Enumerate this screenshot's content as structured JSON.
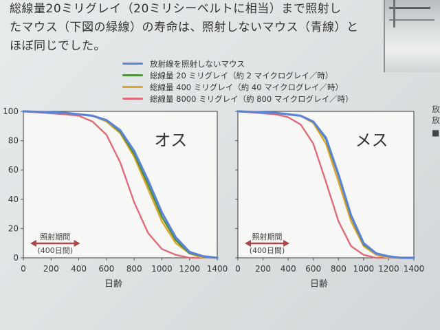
{
  "text": {
    "lines": [
      "総線量20ミリグレイ（20ミリシーベルトに相当）まで照射し",
      "たマウス（下図の緑線）の寿命は、照射しないマウス（青線）と",
      "ほぼ同じでした。"
    ]
  },
  "edge_glyphs": [
    "放",
    "放",
    "■"
  ],
  "colors": {
    "blue": "#5a82d6",
    "green": "#4c8f3a",
    "orange": "#d9a52a",
    "pink": "#e06a78",
    "arrow": "#a84848"
  },
  "chart_data": [
    {
      "type": "line",
      "title": "オス",
      "xlabel": "日齢",
      "ylabel": "",
      "xlim": [
        0,
        1400
      ],
      "ylim": [
        0,
        100
      ],
      "xticks": [
        "0",
        "200",
        "400",
        "600",
        "800",
        "1000",
        "1200",
        "1400"
      ],
      "yticks": [
        "0",
        "20",
        "40",
        "60",
        "80",
        "100"
      ],
      "annotation": {
        "label": "照射期間",
        "sublabel": "(400日間)",
        "x_range": [
          0,
          400
        ]
      },
      "series": [
        {
          "name": "放射線を照射しないマウス",
          "color": "#5a82d6",
          "x": [
            0,
            300,
            500,
            600,
            700,
            800,
            900,
            1000,
            1100,
            1200,
            1300,
            1400
          ],
          "y": [
            100,
            99,
            97,
            94,
            87,
            73,
            53,
            31,
            14,
            4,
            1,
            0
          ]
        },
        {
          "name": "総線量 20 ミリグレイ（約 2 マイクログレイ／時）",
          "color": "#4c8f3a",
          "x": [
            0,
            300,
            500,
            600,
            700,
            800,
            900,
            1000,
            1100,
            1200,
            1300,
            1400
          ],
          "y": [
            100,
            99,
            97,
            94,
            86,
            71,
            50,
            28,
            12,
            3,
            1,
            0
          ]
        },
        {
          "name": "総線量 400 ミリグレイ（約 40 マイクログレイ／時）",
          "color": "#d9a52a",
          "x": [
            0,
            300,
            500,
            600,
            700,
            800,
            900,
            1000,
            1100,
            1200,
            1300,
            1400
          ],
          "y": [
            100,
            99,
            97,
            93,
            85,
            69,
            47,
            25,
            10,
            3,
            0,
            0
          ]
        },
        {
          "name": "総線量 8000 ミリグレイ（約 800 マイクログレイ／時）",
          "color": "#e06a78",
          "x": [
            0,
            300,
            400,
            500,
            600,
            700,
            800,
            900,
            1000,
            1100,
            1200,
            1300
          ],
          "y": [
            100,
            98,
            97,
            93,
            84,
            65,
            38,
            17,
            6,
            2,
            0,
            0
          ]
        }
      ]
    },
    {
      "type": "line",
      "title": "メス",
      "xlabel": "日齢",
      "ylabel": "",
      "xlim": [
        0,
        1400
      ],
      "ylim": [
        0,
        100
      ],
      "xticks": [
        "0",
        "200",
        "400",
        "600",
        "800",
        "1000",
        "1200",
        "1400"
      ],
      "yticks": [
        "0",
        "20",
        "40",
        "60",
        "80",
        "100"
      ],
      "annotation": {
        "label": "照射期間",
        "sublabel": "(400日間)",
        "x_range": [
          0,
          400
        ]
      },
      "series": [
        {
          "name": "放射線を照射しないマウス",
          "color": "#5a82d6",
          "x": [
            0,
            300,
            500,
            600,
            700,
            800,
            900,
            1000,
            1100,
            1200,
            1300,
            1400
          ],
          "y": [
            100,
            99,
            97,
            93,
            82,
            57,
            29,
            10,
            3,
            1,
            0,
            0
          ]
        },
        {
          "name": "総線量 20 ミリグレイ（約 2 マイクログレイ／時）",
          "color": "#4c8f3a",
          "x": [
            0,
            300,
            500,
            600,
            700,
            800,
            900,
            1000,
            1100,
            1200,
            1300,
            1400
          ],
          "y": [
            100,
            99,
            97,
            93,
            81,
            56,
            28,
            9,
            3,
            1,
            0,
            0
          ]
        },
        {
          "name": "総線量 400 ミリグレイ（約 40 マイクログレイ／時）",
          "color": "#d9a52a",
          "x": [
            0,
            300,
            500,
            600,
            700,
            800,
            900,
            1000,
            1100,
            1200,
            1300,
            1400
          ],
          "y": [
            100,
            99,
            97,
            92,
            78,
            52,
            25,
            8,
            2,
            0,
            0,
            0
          ]
        },
        {
          "name": "総線量 8000 ミリグレイ（約 800 マイクログレイ／時）",
          "color": "#e06a78",
          "x": [
            0,
            300,
            400,
            500,
            600,
            700,
            800,
            900,
            1000,
            1100,
            1200,
            1300
          ],
          "y": [
            100,
            98,
            96,
            91,
            78,
            52,
            25,
            8,
            2,
            0,
            0,
            0
          ]
        }
      ]
    }
  ]
}
